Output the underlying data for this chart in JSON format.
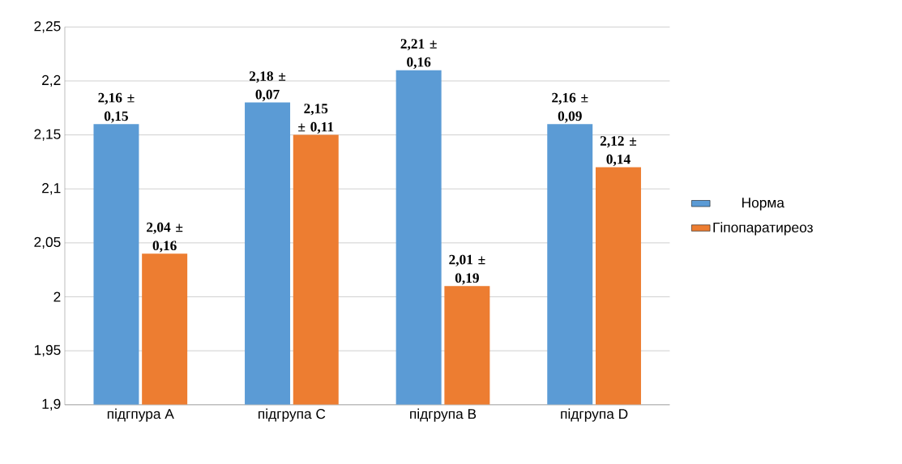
{
  "chart_data": {
    "type": "bar",
    "categories": [
      "підгпура А",
      "підгрупа С",
      "підгрупа В",
      "підгрупа D"
    ],
    "series": [
      {
        "name": "Норма",
        "color": "#5b9bd5",
        "values": [
          2.16,
          2.18,
          2.21,
          2.16
        ],
        "value_labels": [
          "2,16 ± 0,15",
          "2,18 ± 0,07",
          "2,21 ± 0,16",
          "2,16 ± 0,09"
        ]
      },
      {
        "name": "Гіпопаратиреоз",
        "color": "#ed7d31",
        "values": [
          2.04,
          2.15,
          2.01,
          2.12
        ],
        "value_labels": [
          "2,04 ± 0,16",
          "2,15 ± 0,11",
          "2,01 ± 0,19",
          "2,12 ± 0,14"
        ]
      }
    ],
    "ylim": [
      1.9,
      2.25
    ],
    "yticks": [
      {
        "value": 1.9,
        "label": "1,9"
      },
      {
        "value": 1.95,
        "label": "1,95"
      },
      {
        "value": 2,
        "label": "2"
      },
      {
        "value": 2.05,
        "label": "2,05"
      },
      {
        "value": 2.1,
        "label": "2,1"
      },
      {
        "value": 2.15,
        "label": "2,15"
      },
      {
        "value": 2.2,
        "label": "2,2"
      },
      {
        "value": 2.25,
        "label": "2,25"
      }
    ],
    "grid": "y",
    "legend": "right"
  }
}
